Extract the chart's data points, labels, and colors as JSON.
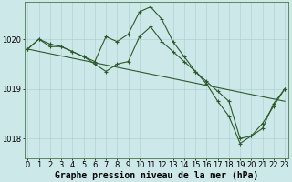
{
  "background_color": "#cce8e8",
  "grid_color": "#aacccc",
  "line_color": "#2d5a2d",
  "marker_color": "#2d5a2d",
  "xlabel": "Graphe pression niveau de la mer (hPa)",
  "ylim": [
    1017.6,
    1020.75
  ],
  "yticks": [
    1018,
    1019,
    1020
  ],
  "xticks": [
    0,
    1,
    2,
    3,
    4,
    5,
    6,
    7,
    8,
    9,
    10,
    11,
    12,
    13,
    14,
    15,
    16,
    17,
    18,
    19,
    20,
    21,
    22,
    23
  ],
  "series1_x": [
    0,
    1,
    2,
    3,
    4,
    5,
    6,
    7,
    8,
    9,
    10,
    11,
    12,
    13,
    14,
    15,
    16,
    17,
    18,
    19,
    20,
    21,
    22,
    23
  ],
  "series1_y": [
    1019.8,
    1020.0,
    1019.85,
    1019.85,
    1019.75,
    1019.65,
    1019.5,
    1019.35,
    1019.5,
    1019.55,
    1020.05,
    1020.25,
    1019.95,
    1019.75,
    1019.55,
    1019.35,
    1019.15,
    1018.95,
    1018.75,
    1018.0,
    1018.05,
    1018.2,
    1018.7,
    1019.0
  ],
  "series2_x": [
    0,
    1,
    2,
    3,
    4,
    5,
    6,
    7,
    8,
    9,
    10,
    11,
    12,
    13,
    14,
    15,
    16,
    17,
    18,
    19,
    20,
    21,
    22,
    23
  ],
  "series2_y": [
    1019.8,
    1020.0,
    1019.9,
    1019.85,
    1019.75,
    1019.65,
    1019.55,
    1020.05,
    1019.95,
    1020.1,
    1020.55,
    1020.65,
    1020.4,
    1019.95,
    1019.65,
    1019.35,
    1019.1,
    1018.75,
    1018.45,
    1017.9,
    1018.05,
    1018.3,
    1018.65,
    1019.0
  ],
  "series3_x": [
    0,
    23
  ],
  "series3_y": [
    1019.8,
    1018.75
  ],
  "xlabel_fontsize": 7,
  "tick_fontsize": 6
}
